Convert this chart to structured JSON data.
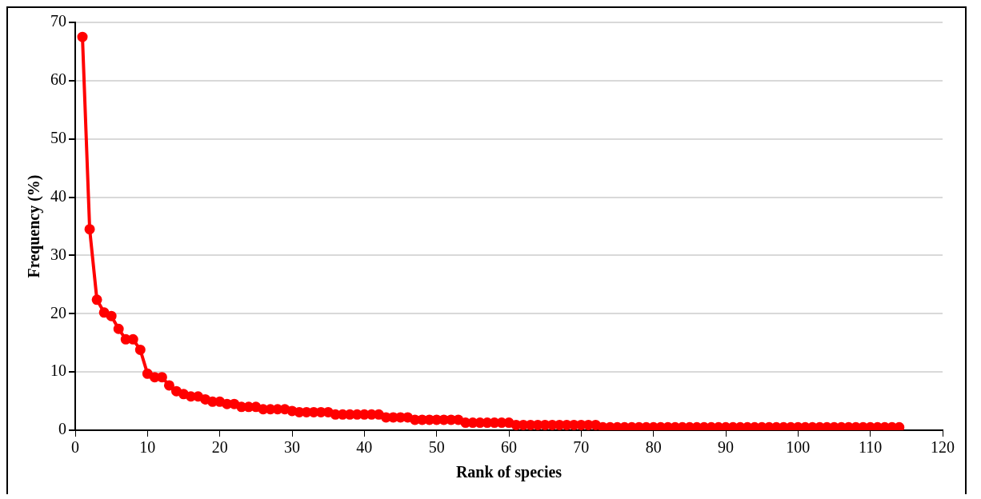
{
  "chart_data": {
    "type": "line",
    "xlabel": "Rank of species",
    "ylabel": "Frequency (%)",
    "x": [
      1,
      2,
      3,
      4,
      5,
      6,
      7,
      8,
      9,
      10,
      11,
      12,
      13,
      14,
      15,
      16,
      17,
      18,
      19,
      20,
      21,
      22,
      23,
      24,
      25,
      26,
      27,
      28,
      29,
      30,
      31,
      32,
      33,
      34,
      35,
      36,
      37,
      38,
      39,
      40,
      41,
      42,
      43,
      44,
      45,
      46,
      47,
      48,
      49,
      50,
      51,
      52,
      53,
      54,
      55,
      56,
      57,
      58,
      59,
      60,
      61,
      62,
      63,
      64,
      65,
      66,
      67,
      68,
      69,
      70,
      71,
      72,
      73,
      74,
      75,
      76,
      77,
      78,
      79,
      80,
      81,
      82,
      83,
      84,
      85,
      86,
      87,
      88,
      89,
      90,
      91,
      92,
      93,
      94,
      95,
      96,
      97,
      98,
      99,
      100,
      101,
      102,
      103,
      104,
      105,
      106,
      107,
      108,
      109,
      110,
      111,
      112,
      113,
      114
    ],
    "series": [
      {
        "color": "#ff0000",
        "values": [
          67.5,
          34.5,
          22.4,
          20.2,
          19.6,
          17.4,
          15.6,
          15.6,
          13.8,
          9.7,
          9.1,
          9.1,
          7.7,
          6.7,
          6.2,
          5.8,
          5.8,
          5.3,
          4.9,
          4.9,
          4.5,
          4.5,
          4.0,
          4.0,
          4.0,
          3.6,
          3.6,
          3.6,
          3.6,
          3.3,
          3.1,
          3.1,
          3.1,
          3.1,
          3.1,
          2.7,
          2.7,
          2.7,
          2.7,
          2.7,
          2.7,
          2.7,
          2.2,
          2.2,
          2.2,
          2.2,
          1.8,
          1.8,
          1.8,
          1.8,
          1.8,
          1.8,
          1.8,
          1.3,
          1.3,
          1.3,
          1.3,
          1.3,
          1.3,
          1.3,
          0.9,
          0.9,
          0.9,
          0.9,
          0.9,
          0.9,
          0.9,
          0.9,
          0.9,
          0.9,
          0.9,
          0.9,
          0.5,
          0.5,
          0.5,
          0.5,
          0.5,
          0.5,
          0.5,
          0.5,
          0.5,
          0.5,
          0.5,
          0.5,
          0.5,
          0.5,
          0.5,
          0.5,
          0.5,
          0.5,
          0.5,
          0.5,
          0.5,
          0.5,
          0.5,
          0.5,
          0.5,
          0.5,
          0.5,
          0.5,
          0.5,
          0.5,
          0.5,
          0.5,
          0.5,
          0.5,
          0.5,
          0.5,
          0.5,
          0.5,
          0.5,
          0.5,
          0.5,
          0.5
        ]
      }
    ],
    "xlim": [
      0,
      120
    ],
    "xticks": [
      0,
      10,
      20,
      30,
      40,
      50,
      60,
      70,
      80,
      90,
      100,
      110,
      120
    ],
    "ylim": [
      0,
      70
    ],
    "yticks": [
      0,
      10,
      20,
      30,
      40,
      50,
      60,
      70
    ],
    "grid": "y",
    "marker": "circle",
    "line_style": "solid",
    "legend": false
  }
}
